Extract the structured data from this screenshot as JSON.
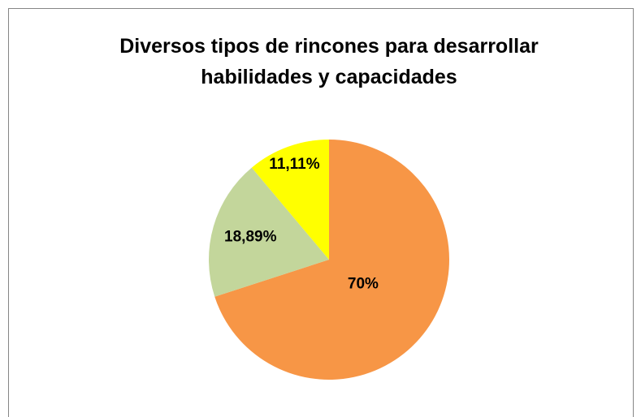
{
  "chart_data": {
    "type": "pie",
    "title": "Diversos tipos de rincones para desarrollar habilidades y capacidades",
    "values": [
      70,
      18.89,
      11.11
    ],
    "value_labels": [
      "70%",
      "18,89%",
      "11,11%"
    ],
    "colors": [
      "#F79646",
      "#C3D69B",
      "#FFFF00"
    ]
  }
}
